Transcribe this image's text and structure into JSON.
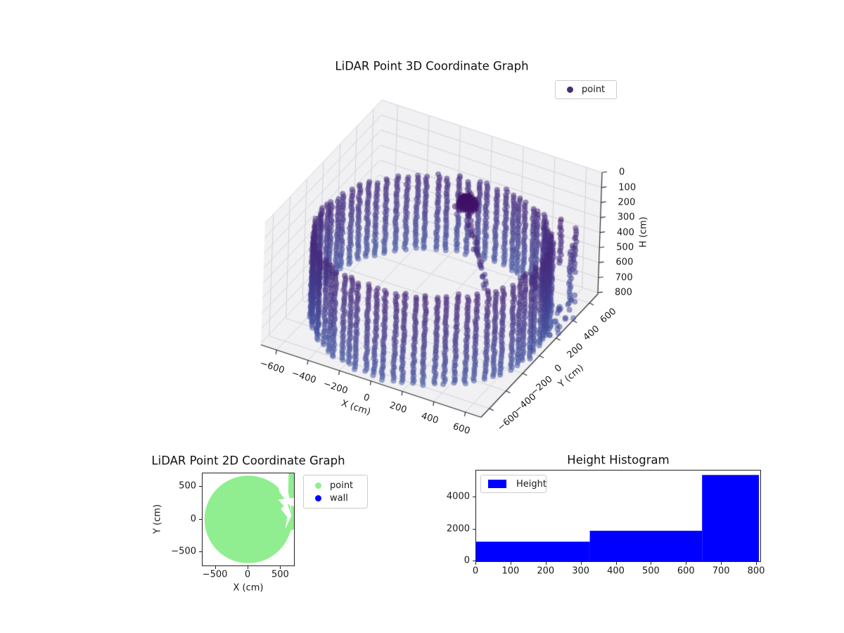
{
  "figure": {
    "background": "#ffffff"
  },
  "chart_data": [
    {
      "type": "scatter3d",
      "title": "LiDAR Point 3D Coordinate Graph",
      "xlabel": "X (cm)",
      "ylabel": "Y (cm)",
      "zlabel": "H (cm)",
      "xticks": [
        -600,
        -400,
        -200,
        0,
        200,
        400,
        600
      ],
      "yticks": [
        -600,
        -400,
        -200,
        0,
        200,
        400,
        600
      ],
      "zticks": [
        0,
        100,
        200,
        300,
        400,
        500,
        600,
        700,
        800
      ],
      "xlim": [
        -700,
        700
      ],
      "ylim": [
        -700,
        700
      ],
      "zlim": [
        0,
        810
      ],
      "z_axis_inverted": true,
      "grid": true,
      "legend": [
        {
          "label": "point",
          "marker_color": "#472d7b"
        }
      ],
      "colormap_stops": [
        {
          "t": 0.0,
          "color": "#3f0b63"
        },
        {
          "t": 0.3,
          "color": "#482a7b"
        },
        {
          "t": 0.65,
          "color": "#453c8d"
        },
        {
          "t": 1.0,
          "color": "#4658a3"
        }
      ],
      "point_style": {
        "radius_px": 4,
        "alpha": 0.55
      },
      "point_cloud": {
        "wall_cylinder": {
          "center_x": 0,
          "center_y": 0,
          "radius_cm": 670,
          "radius_jitter": 9,
          "n_columns": 72,
          "h_top_mean": 258,
          "h_top_wave": 52,
          "h_top_wave_phase_deg": 120,
          "h_bottom": 800,
          "h_step": 16,
          "xy_jitter": 5
        },
        "sensor_cluster": {
          "x": 150,
          "y": 130,
          "h": 60,
          "spread_xy": 65,
          "spread_h": 45,
          "count": 210
        },
        "trail": {
          "x1": 170,
          "y1": 115,
          "h1": 130,
          "x2": 330,
          "y2": 25,
          "h2": 500,
          "count": 30,
          "jitter": 14
        },
        "outlier_columns": [
          {
            "x": 670,
            "y": 455,
            "h1": 240,
            "h2": 530
          },
          {
            "x": 640,
            "y": 330,
            "h1": 120,
            "h2": 420
          },
          {
            "x": 610,
            "y": 530,
            "h1": 420,
            "h2": 800
          }
        ],
        "outlier_scatter": {
          "x_min": 600,
          "x_max": 760,
          "y_min": 60,
          "y_max": 430,
          "h_min": 620,
          "h_max": 810,
          "count": 26
        }
      }
    },
    {
      "type": "scatter2d",
      "title": "LiDAR Point 2D Coordinate Graph",
      "xlabel": "X (cm)",
      "ylabel": "Y (cm)",
      "xticks": [
        -500,
        0,
        500
      ],
      "yticks": [
        500,
        0,
        -500
      ],
      "xlim": [
        -700,
        700
      ],
      "ylim": [
        -700,
        700
      ],
      "legend": [
        {
          "label": "point",
          "marker_color": "#90ee90"
        },
        {
          "label": "wall",
          "marker_color": "#0000ff"
        }
      ],
      "point_region": {
        "fill": "#90ee90",
        "disc": {
          "cx": 0,
          "cy": 0,
          "r": 670
        },
        "extra_polygons": [
          [
            [
              618,
              -190
            ],
            [
              650,
              -60
            ],
            [
              662,
              120
            ],
            [
              645,
              260
            ],
            [
              610,
              420
            ],
            [
              568,
              560
            ],
            [
              583,
              700
            ],
            [
              712,
              700
            ],
            [
              712,
              -140
            ]
          ]
        ],
        "cutout_polygons": [
          [
            [
              392,
              712
            ],
            [
              618,
              712
            ],
            [
              612,
              420
            ],
            [
              566,
              295
            ],
            [
              480,
              415
            ],
            [
              446,
              550
            ]
          ],
          [
            [
              458,
              300
            ],
            [
              712,
              330
            ],
            [
              712,
              190
            ],
            [
              600,
              235
            ],
            [
              662,
              60
            ],
            [
              565,
              -150
            ],
            [
              597,
              35
            ],
            [
              500,
              160
            ],
            [
              545,
              205
            ]
          ]
        ]
      }
    },
    {
      "type": "histogram",
      "title": "Height Histogram",
      "legend": [
        {
          "label": "Height",
          "color": "#0000ff"
        }
      ],
      "bar_color": "#0000ff",
      "bins": [
        {
          "from": 0,
          "to": 324,
          "count": 1230
        },
        {
          "from": 324,
          "to": 644,
          "count": 1915
        },
        {
          "from": 644,
          "to": 806,
          "count": 5420
        }
      ],
      "xticks": [
        0,
        100,
        200,
        300,
        400,
        500,
        600,
        700,
        800
      ],
      "yticks": [
        0,
        2000,
        4000
      ],
      "xlim": [
        0,
        810
      ],
      "ylim": [
        0,
        5700
      ]
    }
  ]
}
